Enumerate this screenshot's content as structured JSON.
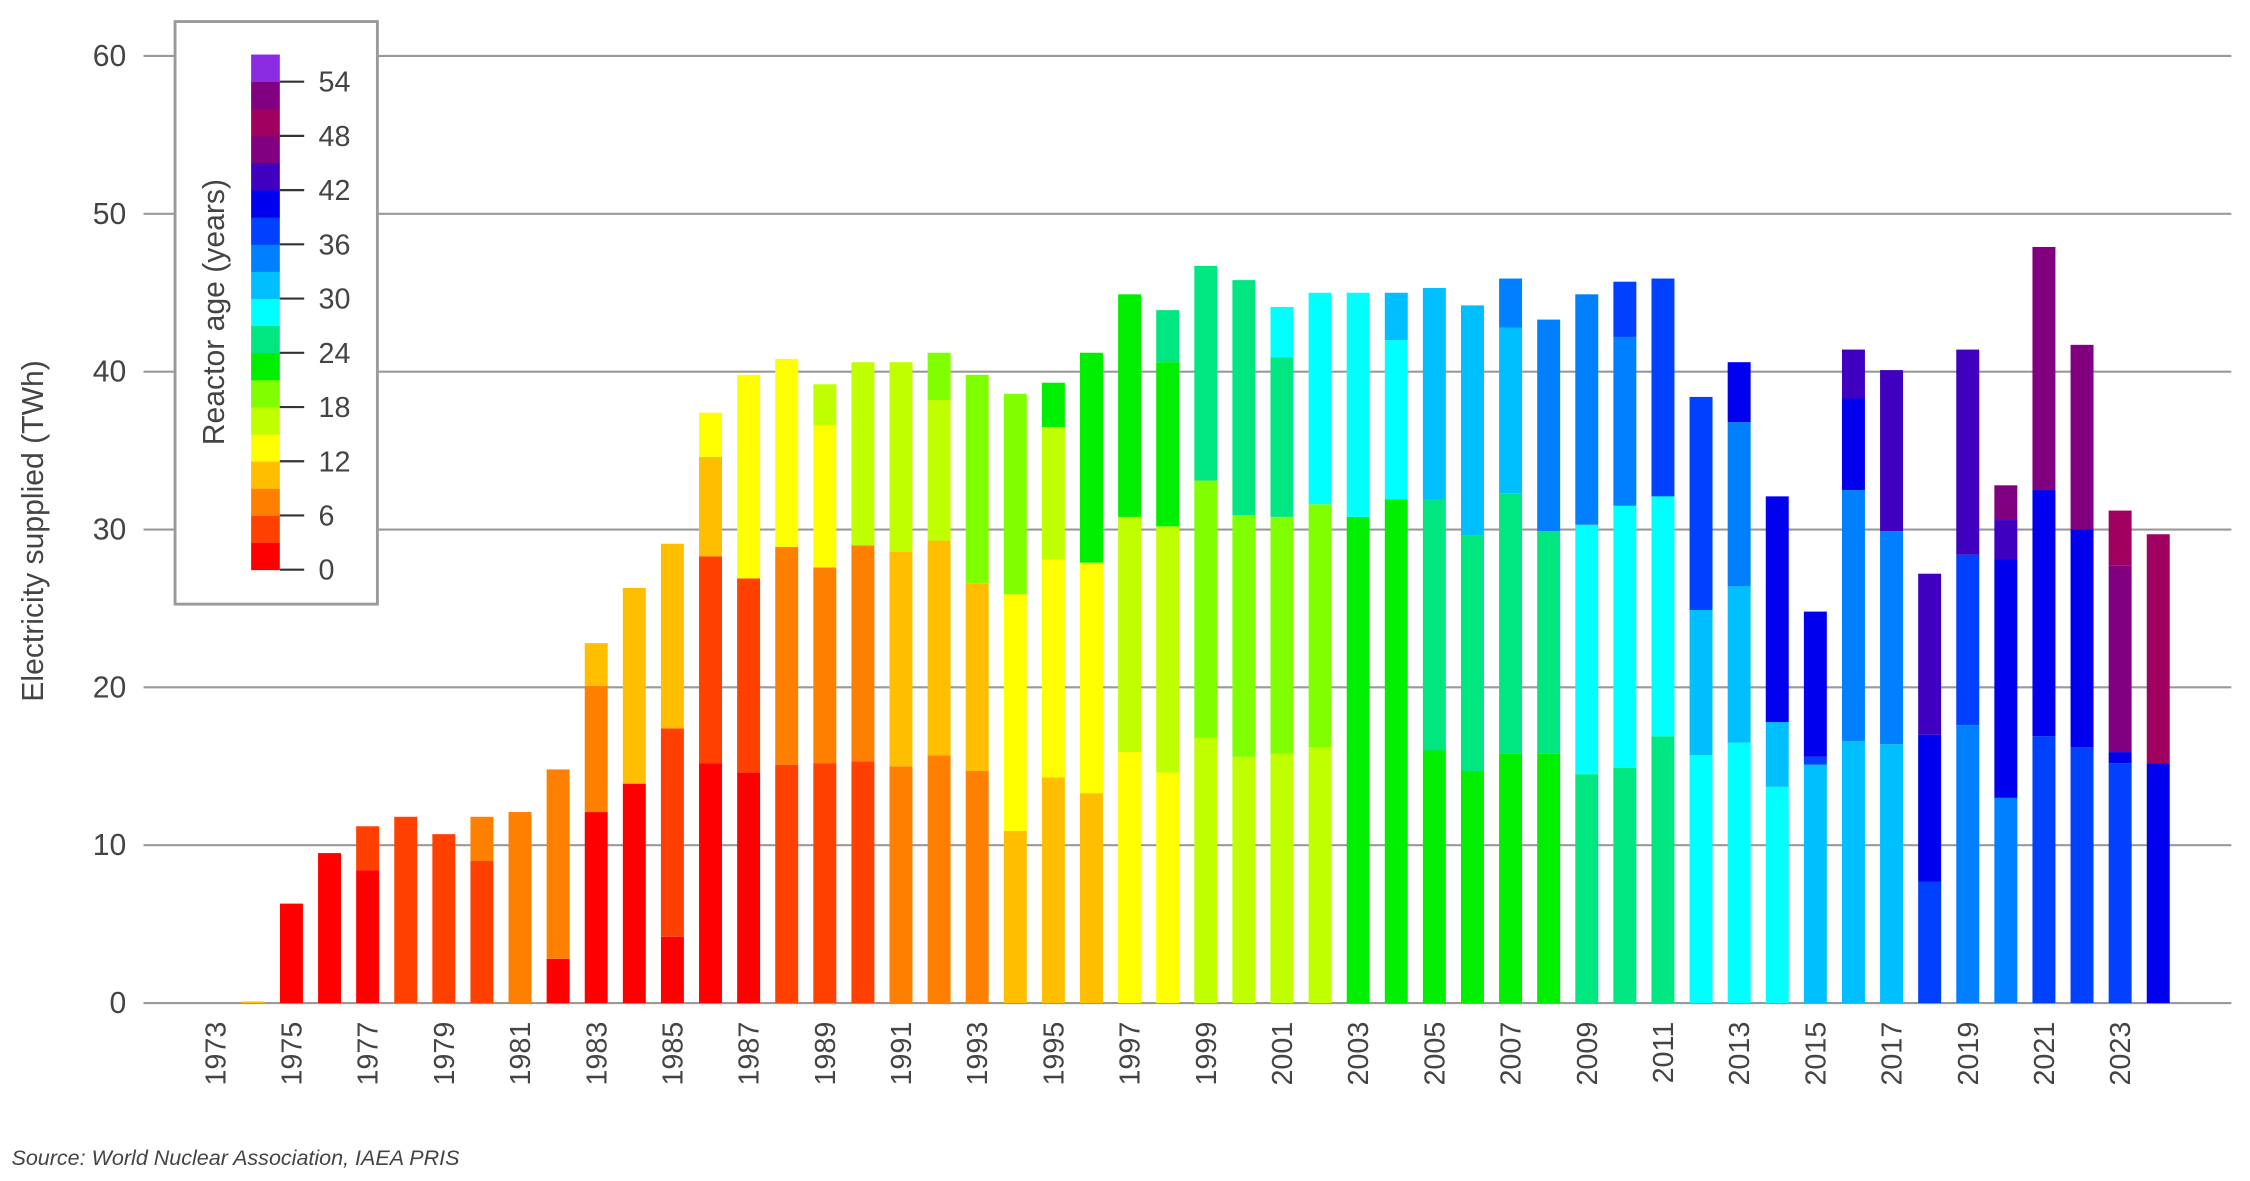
{
  "chart_data": {
    "type": "bar",
    "stacked": true,
    "y_label": "Electricity supplied (TWh)",
    "source": "Source: World Nuclear Association, IAEA PRIS",
    "ylim": [
      0,
      60
    ],
    "yticks": [
      0,
      10,
      20,
      30,
      40,
      50,
      60
    ],
    "grid": true,
    "categories": [
      "1973",
      null,
      "1975",
      null,
      "1977",
      null,
      "1979",
      null,
      "1981",
      null,
      "1983",
      null,
      "1985",
      null,
      "1987",
      null,
      "1989",
      null,
      "1991",
      null,
      "1993",
      null,
      "1995",
      null,
      "1997",
      null,
      "1999",
      null,
      "2001",
      null,
      "2003",
      null,
      "2005",
      null,
      "2007",
      null,
      "2009",
      null,
      "2011",
      null,
      "2013",
      null,
      "2015",
      null,
      "2017",
      null,
      "2019",
      null,
      "2021",
      null,
      "2023",
      null
    ],
    "colorbar": {
      "label": "Reactor age (years)",
      "lim": [
        0,
        57
      ],
      "ticks": [
        0,
        6,
        12,
        18,
        24,
        30,
        36,
        42,
        48,
        54
      ],
      "position": "top-left",
      "colors": [
        "#ff0000",
        "#ff4000",
        "#ff8000",
        "#ffbf00",
        "#ffff00",
        "#bfff00",
        "#80ff00",
        "#00ee00",
        "#00e680",
        "#00ffff",
        "#00bfff",
        "#0080ff",
        "#0040ff",
        "#0000ee",
        "#4000c0",
        "#800080",
        "#a00060",
        "#800080",
        "#8b2be2"
      ]
    },
    "series": [
      {
        "color": "#ff0000",
        "values": [
          null,
          null,
          6.3,
          9.5,
          8.4,
          null,
          null,
          null,
          null,
          2.8,
          12.1,
          13.9,
          4.2,
          15.2,
          14.6,
          null,
          null,
          null,
          null,
          null,
          null,
          null,
          null,
          null,
          null,
          null,
          null,
          null,
          null,
          null,
          null,
          null,
          null,
          null,
          null,
          null,
          null,
          null,
          null,
          null,
          null,
          null,
          null,
          null,
          null,
          null,
          null,
          null,
          null,
          null,
          null,
          null
        ]
      },
      {
        "color": "#ff4000",
        "values": [
          null,
          null,
          null,
          null,
          2.8,
          11.8,
          10.7,
          9.0,
          null,
          null,
          null,
          null,
          13.2,
          13.1,
          12.3,
          15.1,
          15.2,
          15.3,
          null,
          null,
          null,
          null,
          null,
          null,
          null,
          null,
          null,
          null,
          null,
          null,
          null,
          null,
          null,
          null,
          null,
          null,
          null,
          null,
          null,
          null,
          null,
          null,
          null,
          null,
          null,
          null,
          null,
          null,
          null,
          null,
          null,
          null
        ]
      },
      {
        "color": "#ff8000",
        "values": [
          null,
          null,
          null,
          null,
          null,
          null,
          null,
          2.8,
          12.1,
          12.0,
          8.0,
          null,
          null,
          null,
          null,
          13.8,
          12.4,
          13.7,
          15.0,
          15.7,
          14.7,
          null,
          null,
          null,
          null,
          null,
          null,
          null,
          null,
          null,
          null,
          null,
          null,
          null,
          null,
          null,
          null,
          null,
          null,
          null,
          null,
          null,
          null,
          null,
          null,
          null,
          null,
          null,
          null,
          null,
          null,
          null
        ]
      },
      {
        "color": "#ffbf00",
        "values": [
          null,
          0.1,
          null,
          null,
          null,
          null,
          null,
          null,
          null,
          null,
          2.7,
          12.4,
          11.7,
          6.3,
          null,
          null,
          null,
          null,
          13.6,
          13.6,
          11.9,
          10.9,
          14.3,
          13.3,
          null,
          null,
          null,
          null,
          null,
          null,
          null,
          null,
          null,
          null,
          null,
          null,
          null,
          null,
          null,
          null,
          null,
          null,
          null,
          null,
          null,
          null,
          null,
          null,
          null,
          null,
          null,
          null
        ]
      },
      {
        "color": "#ffff00",
        "values": [
          null,
          null,
          null,
          null,
          null,
          null,
          null,
          null,
          null,
          null,
          null,
          null,
          null,
          2.8,
          12.9,
          11.9,
          9.0,
          null,
          null,
          null,
          null,
          15.0,
          13.8,
          14.6,
          15.9,
          14.6,
          null,
          null,
          null,
          null,
          null,
          null,
          null,
          null,
          null,
          null,
          null,
          null,
          null,
          null,
          null,
          null,
          null,
          null,
          null,
          null,
          null,
          null,
          null,
          null,
          null,
          null
        ]
      },
      {
        "color": "#bfff00",
        "values": [
          null,
          null,
          null,
          null,
          null,
          null,
          null,
          null,
          null,
          null,
          null,
          null,
          null,
          null,
          null,
          null,
          2.6,
          11.6,
          12.0,
          8.9,
          null,
          null,
          8.4,
          null,
          14.9,
          15.6,
          16.8,
          15.6,
          15.8,
          16.2,
          null,
          null,
          null,
          null,
          null,
          null,
          null,
          null,
          null,
          null,
          null,
          null,
          null,
          null,
          null,
          null,
          null,
          null,
          null,
          null,
          null,
          null
        ]
      },
      {
        "color": "#80ff00",
        "values": [
          null,
          null,
          null,
          null,
          null,
          null,
          null,
          null,
          null,
          null,
          null,
          null,
          null,
          null,
          null,
          null,
          null,
          null,
          null,
          3.0,
          13.2,
          12.7,
          null,
          null,
          null,
          null,
          16.3,
          15.3,
          15.0,
          15.4,
          null,
          null,
          null,
          null,
          null,
          null,
          null,
          null,
          null,
          null,
          null,
          null,
          null,
          null,
          null,
          null,
          null,
          null,
          null,
          null,
          null,
          null
        ]
      },
      {
        "color": "#00ee00",
        "values": [
          null,
          null,
          null,
          null,
          null,
          null,
          null,
          null,
          null,
          null,
          null,
          null,
          null,
          null,
          null,
          null,
          null,
          null,
          null,
          null,
          null,
          null,
          2.8,
          13.3,
          14.1,
          10.4,
          null,
          null,
          null,
          null,
          30.8,
          31.9,
          16.0,
          14.7,
          15.8,
          15.8,
          null,
          null,
          null,
          null,
          null,
          null,
          null,
          null,
          null,
          null,
          null,
          null,
          null,
          null,
          null,
          null
        ]
      },
      {
        "color": "#00e680",
        "values": [
          null,
          null,
          null,
          null,
          null,
          null,
          null,
          null,
          null,
          null,
          null,
          null,
          null,
          null,
          null,
          null,
          null,
          null,
          null,
          null,
          null,
          null,
          null,
          null,
          null,
          3.3,
          13.6,
          14.9,
          10.1,
          null,
          null,
          null,
          15.9,
          14.9,
          16.5,
          14.1,
          14.5,
          14.9,
          16.9,
          null,
          null,
          null,
          null,
          null,
          null,
          null,
          null,
          null,
          null,
          null,
          null,
          null
        ]
      },
      {
        "color": "#00ffff",
        "values": [
          null,
          null,
          null,
          null,
          null,
          null,
          null,
          null,
          null,
          null,
          null,
          null,
          null,
          null,
          null,
          null,
          null,
          null,
          null,
          null,
          null,
          null,
          null,
          null,
          null,
          null,
          null,
          null,
          3.2,
          13.4,
          14.2,
          10.1,
          null,
          null,
          null,
          null,
          15.8,
          16.6,
          15.2,
          15.7,
          16.5,
          13.7,
          null,
          null,
          null,
          null,
          null,
          null,
          null,
          null,
          null,
          null
        ]
      },
      {
        "color": "#00bfff",
        "values": [
          null,
          null,
          null,
          null,
          null,
          null,
          null,
          null,
          null,
          null,
          null,
          null,
          null,
          null,
          null,
          null,
          null,
          null,
          null,
          null,
          null,
          null,
          null,
          null,
          null,
          null,
          null,
          null,
          null,
          null,
          null,
          3.0,
          13.4,
          14.6,
          10.5,
          null,
          null,
          null,
          null,
          9.2,
          9.9,
          4.1,
          15.1,
          16.6,
          16.4,
          null,
          null,
          null,
          null,
          null,
          null,
          null
        ]
      },
      {
        "color": "#0080ff",
        "values": [
          null,
          null,
          null,
          null,
          null,
          null,
          null,
          null,
          null,
          null,
          null,
          null,
          null,
          null,
          null,
          null,
          null,
          null,
          null,
          null,
          null,
          null,
          null,
          null,
          null,
          null,
          null,
          null,
          null,
          null,
          null,
          null,
          null,
          null,
          3.1,
          13.4,
          14.6,
          10.7,
          null,
          null,
          10.4,
          null,
          null,
          15.9,
          13.5,
          null,
          17.6,
          13.0,
          null,
          null,
          null,
          null
        ]
      },
      {
        "color": "#0040ff",
        "values": [
          null,
          null,
          null,
          null,
          null,
          null,
          null,
          null,
          null,
          null,
          null,
          null,
          null,
          null,
          null,
          null,
          null,
          null,
          null,
          null,
          null,
          null,
          null,
          null,
          null,
          null,
          null,
          null,
          null,
          null,
          null,
          null,
          null,
          null,
          null,
          null,
          null,
          3.5,
          13.8,
          13.5,
          null,
          null,
          0.5,
          null,
          null,
          7.7,
          10.8,
          null,
          16.9,
          16.2,
          15.2,
          null
        ]
      },
      {
        "color": "#0000ee",
        "values": [
          null,
          null,
          null,
          null,
          null,
          null,
          null,
          null,
          null,
          null,
          null,
          null,
          null,
          null,
          null,
          null,
          null,
          null,
          null,
          null,
          null,
          null,
          null,
          null,
          null,
          null,
          null,
          null,
          null,
          null,
          null,
          null,
          null,
          null,
          null,
          null,
          null,
          null,
          null,
          null,
          3.8,
          14.3,
          9.2,
          5.8,
          null,
          9.3,
          null,
          15.1,
          15.6,
          13.8,
          0.7,
          15.2
        ]
      },
      {
        "color": "#4000c0",
        "values": [
          null,
          null,
          null,
          null,
          null,
          null,
          null,
          null,
          null,
          null,
          null,
          null,
          null,
          null,
          null,
          null,
          null,
          null,
          null,
          null,
          null,
          null,
          null,
          null,
          null,
          null,
          null,
          null,
          null,
          null,
          null,
          null,
          null,
          null,
          null,
          null,
          null,
          null,
          null,
          null,
          null,
          null,
          null,
          3.1,
          10.2,
          10.2,
          13.0,
          2.5,
          null,
          null,
          null,
          null
        ]
      },
      {
        "color": "#800080",
        "values": [
          null,
          null,
          null,
          null,
          null,
          null,
          null,
          null,
          null,
          null,
          null,
          null,
          null,
          null,
          null,
          null,
          null,
          null,
          null,
          null,
          null,
          null,
          null,
          null,
          null,
          null,
          null,
          null,
          null,
          null,
          null,
          null,
          null,
          null,
          null,
          null,
          null,
          null,
          null,
          null,
          null,
          null,
          null,
          null,
          null,
          null,
          null,
          2.2,
          15.4,
          11.7,
          11.8,
          null
        ]
      },
      {
        "color": "#a00060",
        "values": [
          null,
          null,
          null,
          null,
          null,
          null,
          null,
          null,
          null,
          null,
          null,
          null,
          null,
          null,
          null,
          null,
          null,
          null,
          null,
          null,
          null,
          null,
          null,
          null,
          null,
          null,
          null,
          null,
          null,
          null,
          null,
          null,
          null,
          null,
          null,
          null,
          null,
          null,
          null,
          null,
          null,
          null,
          null,
          null,
          null,
          null,
          null,
          null,
          null,
          null,
          3.5,
          14.5
        ]
      }
    ]
  }
}
